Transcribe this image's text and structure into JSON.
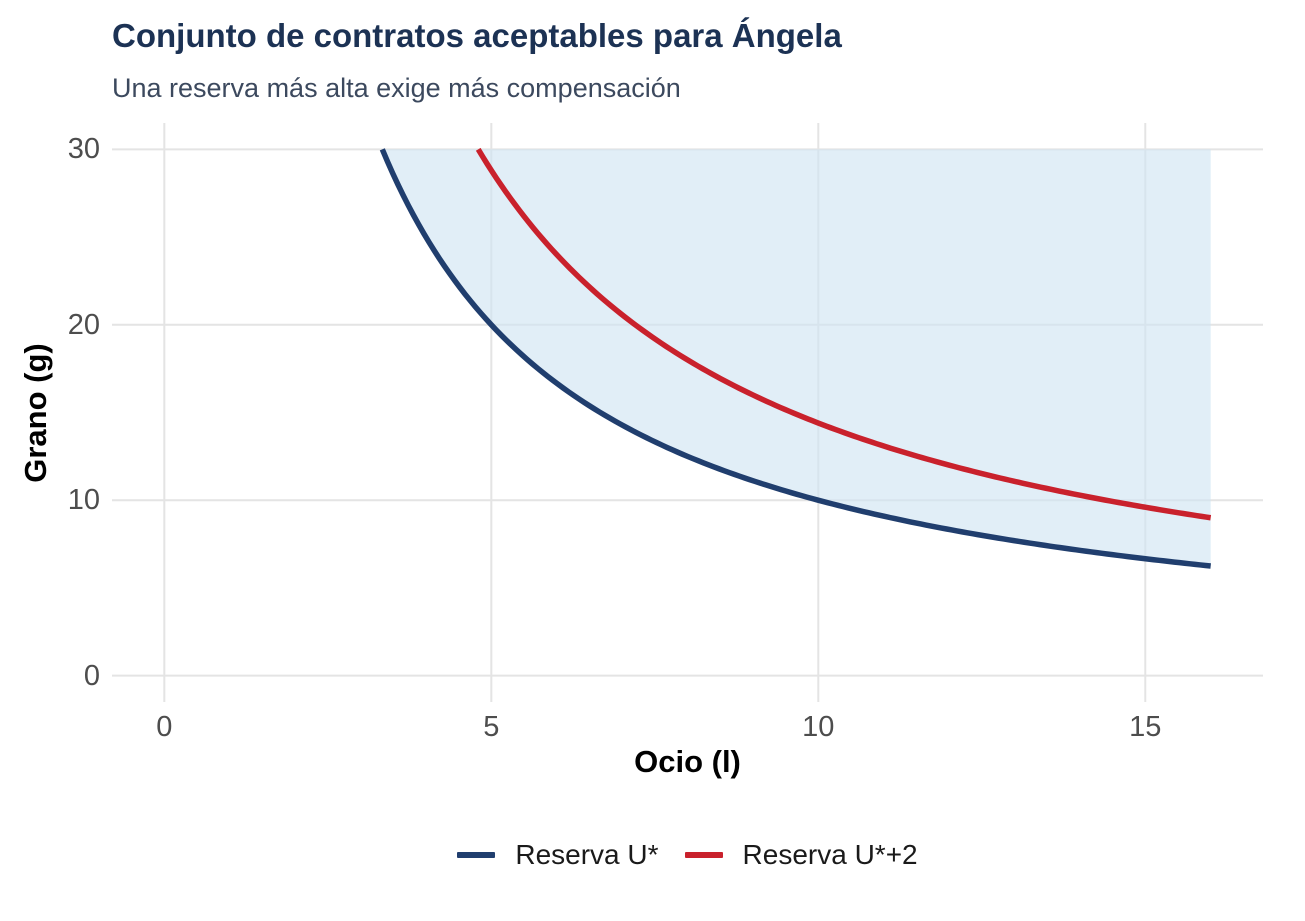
{
  "chart_data": {
    "type": "line",
    "title": "Conjunto de contratos aceptables para Ángela",
    "subtitle": "Una reserva más alta exige más compensación",
    "xlabel": "Ocio (l)",
    "ylabel": "Grano (g)",
    "xlim": [
      0,
      16
    ],
    "ylim": [
      0,
      30
    ],
    "x_ticks": [
      0,
      5,
      10,
      15
    ],
    "y_ticks": [
      0,
      10,
      20,
      30
    ],
    "grid": true,
    "legend_position": "bottom",
    "colors": {
      "background": "#ffffff",
      "grid": "#e4e4e4",
      "title": "#1c3254",
      "subtitle": "#3c495e",
      "tick_label": "#4d4d4d",
      "axis_title": "#000000",
      "legend_text": "#1a1a1a"
    },
    "series": [
      {
        "name": "Reserva U*",
        "color": "#203e6e",
        "curve": "g = 100 / l",
        "hyperbola_constant": 100,
        "x_start": 3.3333,
        "x_end": 16,
        "points": [
          [
            3.33,
            30
          ],
          [
            4,
            25
          ],
          [
            5,
            20
          ],
          [
            6,
            16.67
          ],
          [
            8,
            12.5
          ],
          [
            10,
            10
          ],
          [
            12,
            8.33
          ],
          [
            14,
            7.14
          ],
          [
            16,
            6.25
          ]
        ]
      },
      {
        "name": "Reserva U*+2",
        "color": "#c9212c",
        "curve": "g = 144 / l",
        "hyperbola_constant": 144,
        "x_start": 4.8,
        "x_end": 16,
        "points": [
          [
            4.8,
            30
          ],
          [
            6,
            24
          ],
          [
            8,
            18
          ],
          [
            10,
            14.4
          ],
          [
            12,
            12
          ],
          [
            14,
            10.29
          ],
          [
            16,
            9
          ]
        ]
      }
    ],
    "shaded_region": {
      "label": "conjunto de contratos aceptables",
      "bounds": "área entre la curva Reserva U* y g = 30, hasta l = 16",
      "y_top": 30,
      "fill": "#cfe3f2",
      "fill_opacity": 0.62
    }
  }
}
